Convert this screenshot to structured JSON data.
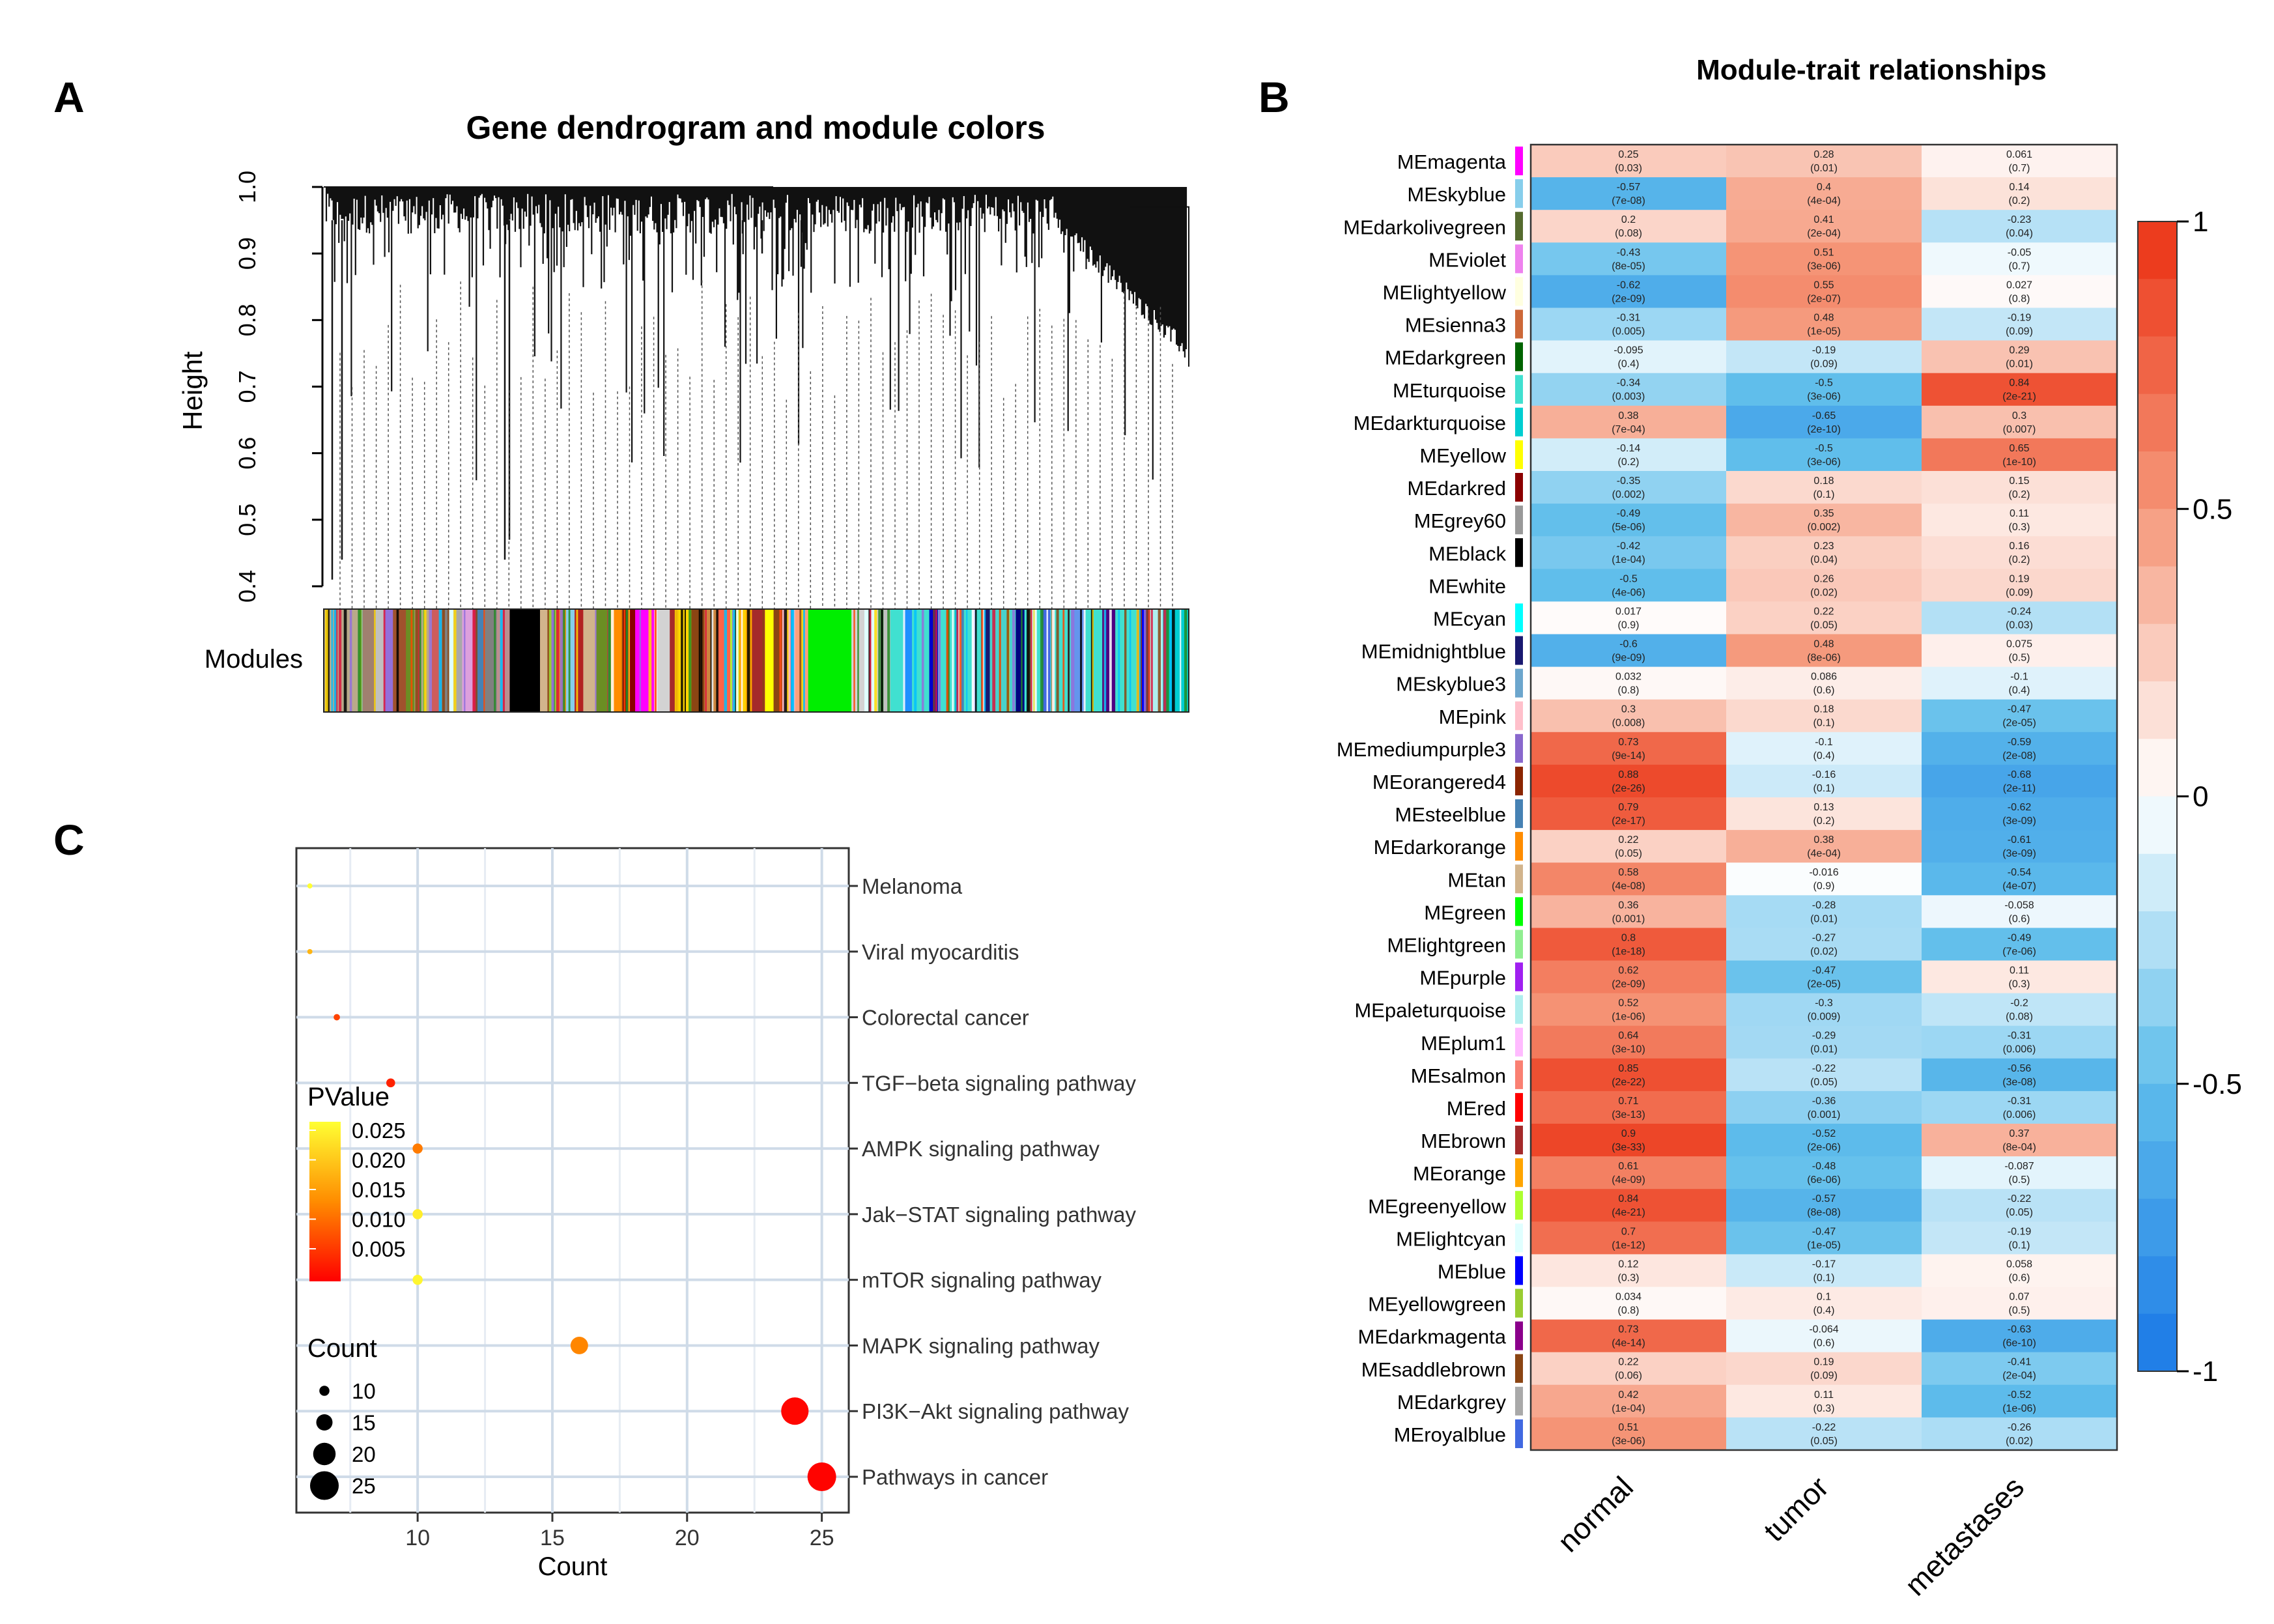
{
  "panels": {
    "a": "A",
    "b": "B",
    "c": "C"
  },
  "chart_data": [
    {
      "type": "dendrogram",
      "title": "Gene dendrogram and module colors",
      "ylabel": "Height",
      "ylim": [
        0.4,
        1.0
      ],
      "yticks": [
        "0.4",
        "0.5",
        "0.6",
        "0.7",
        "0.8",
        "0.9",
        "1.0"
      ],
      "color_bar_label": "Modules"
    },
    {
      "type": "heatmap",
      "title": "Module-trait relationships",
      "columns": [
        "normal",
        "tumor",
        "metastases"
      ],
      "colorbar": {
        "ticks": [
          "1",
          "0.5",
          "0",
          "-0.5",
          "-1"
        ],
        "range": [
          -1,
          1
        ]
      },
      "rows": [
        {
          "module": "MEmagenta",
          "swatch": "#ff00ff",
          "values": [
            0.25,
            0.28,
            0.061
          ],
          "pvals": [
            "(0.03)",
            "(0.01)",
            "(0.7)"
          ],
          "labels": [
            "0.25",
            "0.28",
            "0.061"
          ]
        },
        {
          "module": "MEskyblue",
          "swatch": "#87ceeb",
          "values": [
            -0.57,
            0.4,
            0.14
          ],
          "pvals": [
            "(7e-08)",
            "(4e-04)",
            "(0.2)"
          ],
          "labels": [
            "-0.57",
            "0.4",
            "0.14"
          ]
        },
        {
          "module": "MEdarkolivegreen",
          "swatch": "#556b2f",
          "values": [
            0.2,
            0.41,
            -0.23
          ],
          "pvals": [
            "(0.08)",
            "(2e-04)",
            "(0.04)"
          ],
          "labels": [
            "0.2",
            "0.41",
            "-0.23"
          ]
        },
        {
          "module": "MEviolet",
          "swatch": "#ee82ee",
          "values": [
            -0.43,
            0.51,
            -0.05
          ],
          "pvals": [
            "(8e-05)",
            "(3e-06)",
            "(0.7)"
          ],
          "labels": [
            "-0.43",
            "0.51",
            "-0.05"
          ]
        },
        {
          "module": "MElightyellow",
          "swatch": "#ffffe0",
          "values": [
            -0.62,
            0.55,
            0.027
          ],
          "pvals": [
            "(2e-09)",
            "(2e-07)",
            "(0.8)"
          ],
          "labels": [
            "-0.62",
            "0.55",
            "0.027"
          ]
        },
        {
          "module": "MEsienna3",
          "swatch": "#cd6839",
          "values": [
            -0.31,
            0.48,
            -0.19
          ],
          "pvals": [
            "(0.005)",
            "(1e-05)",
            "(0.09)"
          ],
          "labels": [
            "-0.31",
            "0.48",
            "-0.19"
          ]
        },
        {
          "module": "MEdarkgreen",
          "swatch": "#006400",
          "values": [
            -0.095,
            -0.19,
            0.29
          ],
          "pvals": [
            "(0.4)",
            "(0.09)",
            "(0.01)"
          ],
          "labels": [
            "-0.095",
            "-0.19",
            "0.29"
          ]
        },
        {
          "module": "MEturquoise",
          "swatch": "#40e0d0",
          "values": [
            -0.34,
            -0.5,
            0.84
          ],
          "pvals": [
            "(0.003)",
            "(3e-06)",
            "(2e-21)"
          ],
          "labels": [
            "-0.34",
            "-0.5",
            "0.84"
          ]
        },
        {
          "module": "MEdarkturquoise",
          "swatch": "#00ced1",
          "values": [
            0.38,
            -0.65,
            0.3
          ],
          "pvals": [
            "(7e-04)",
            "(2e-10)",
            "(0.007)"
          ],
          "labels": [
            "0.38",
            "-0.65",
            "0.3"
          ]
        },
        {
          "module": "MEyellow",
          "swatch": "#ffff00",
          "values": [
            -0.14,
            -0.5,
            0.65
          ],
          "pvals": [
            "(0.2)",
            "(3e-06)",
            "(1e-10)"
          ],
          "labels": [
            "-0.14",
            "-0.5",
            "0.65"
          ]
        },
        {
          "module": "MEdarkred",
          "swatch": "#8b0000",
          "values": [
            -0.35,
            0.18,
            0.15
          ],
          "pvals": [
            "(0.002)",
            "(0.1)",
            "(0.2)"
          ],
          "labels": [
            "-0.35",
            "0.18",
            "0.15"
          ]
        },
        {
          "module": "MEgrey60",
          "swatch": "#999999",
          "values": [
            -0.49,
            0.35,
            0.11
          ],
          "pvals": [
            "(5e-06)",
            "(0.002)",
            "(0.3)"
          ],
          "labels": [
            "-0.49",
            "0.35",
            "0.11"
          ]
        },
        {
          "module": "MEblack",
          "swatch": "#000000",
          "values": [
            -0.42,
            0.23,
            0.16
          ],
          "pvals": [
            "(1e-04)",
            "(0.04)",
            "(0.2)"
          ],
          "labels": [
            "-0.42",
            "0.23",
            "0.16"
          ]
        },
        {
          "module": "MEwhite",
          "swatch": "#ffffff",
          "values": [
            -0.5,
            0.26,
            0.19
          ],
          "pvals": [
            "(4e-06)",
            "(0.02)",
            "(0.09)"
          ],
          "labels": [
            "-0.5",
            "0.26",
            "0.19"
          ]
        },
        {
          "module": "MEcyan",
          "swatch": "#00ffff",
          "values": [
            0.017,
            0.22,
            -0.24
          ],
          "pvals": [
            "(0.9)",
            "(0.05)",
            "(0.03)"
          ],
          "labels": [
            "0.017",
            "0.22",
            "-0.24"
          ]
        },
        {
          "module": "MEmidnightblue",
          "swatch": "#191970",
          "values": [
            -0.6,
            0.48,
            0.075
          ],
          "pvals": [
            "(9e-09)",
            "(8e-06)",
            "(0.5)"
          ],
          "labels": [
            "-0.6",
            "0.48",
            "0.075"
          ]
        },
        {
          "module": "MEskyblue3",
          "swatch": "#6ca6cd",
          "values": [
            0.032,
            0.086,
            -0.1
          ],
          "pvals": [
            "(0.8)",
            "(0.6)",
            "(0.4)"
          ],
          "labels": [
            "0.032",
            "0.086",
            "-0.1"
          ]
        },
        {
          "module": "MEpink",
          "swatch": "#ffc0cb",
          "values": [
            0.3,
            0.18,
            -0.47
          ],
          "pvals": [
            "(0.008)",
            "(0.1)",
            "(2e-05)"
          ],
          "labels": [
            "0.3",
            "0.18",
            "-0.47"
          ]
        },
        {
          "module": "MEmediumpurple3",
          "swatch": "#8968cd",
          "values": [
            0.73,
            -0.1,
            -0.59
          ],
          "pvals": [
            "(9e-14)",
            "(0.4)",
            "(2e-08)"
          ],
          "labels": [
            "0.73",
            "-0.1",
            "-0.59"
          ]
        },
        {
          "module": "MEorangered4",
          "swatch": "#8b2500",
          "values": [
            0.88,
            -0.16,
            -0.68
          ],
          "pvals": [
            "(2e-26)",
            "(0.1)",
            "(2e-11)"
          ],
          "labels": [
            "0.88",
            "-0.16",
            "-0.68"
          ]
        },
        {
          "module": "MEsteelblue",
          "swatch": "#4682b4",
          "values": [
            0.79,
            0.13,
            -0.62
          ],
          "pvals": [
            "(2e-17)",
            "(0.2)",
            "(3e-09)"
          ],
          "labels": [
            "0.79",
            "0.13",
            "-0.62"
          ]
        },
        {
          "module": "MEdarkorange",
          "swatch": "#ff8c00",
          "values": [
            0.22,
            0.38,
            -0.61
          ],
          "pvals": [
            "(0.05)",
            "(4e-04)",
            "(3e-09)"
          ],
          "labels": [
            "0.22",
            "0.38",
            "-0.61"
          ]
        },
        {
          "module": "MEtan",
          "swatch": "#d2b48c",
          "values": [
            0.58,
            -0.016,
            -0.54
          ],
          "pvals": [
            "(4e-08)",
            "(0.9)",
            "(4e-07)"
          ],
          "labels": [
            "0.58",
            "-0.016",
            "-0.54"
          ]
        },
        {
          "module": "MEgreen",
          "swatch": "#00ff00",
          "values": [
            0.36,
            -0.28,
            -0.058
          ],
          "pvals": [
            "(0.001)",
            "(0.01)",
            "(0.6)"
          ],
          "labels": [
            "0.36",
            "-0.28",
            "-0.058"
          ]
        },
        {
          "module": "MElightgreen",
          "swatch": "#90ee90",
          "values": [
            0.8,
            -0.27,
            -0.49
          ],
          "pvals": [
            "(1e-18)",
            "(0.02)",
            "(7e-06)"
          ],
          "labels": [
            "0.8",
            "-0.27",
            "-0.49"
          ]
        },
        {
          "module": "MEpurple",
          "swatch": "#a020f0",
          "values": [
            0.62,
            -0.47,
            0.11
          ],
          "pvals": [
            "(2e-09)",
            "(2e-05)",
            "(0.3)"
          ],
          "labels": [
            "0.62",
            "-0.47",
            "0.11"
          ]
        },
        {
          "module": "MEpaleturquoise",
          "swatch": "#afeeee",
          "values": [
            0.52,
            -0.3,
            -0.2
          ],
          "pvals": [
            "(1e-06)",
            "(0.009)",
            "(0.08)"
          ],
          "labels": [
            "0.52",
            "-0.3",
            "-0.2"
          ]
        },
        {
          "module": "MEplum1",
          "swatch": "#ffbbff",
          "values": [
            0.64,
            -0.29,
            -0.31
          ],
          "pvals": [
            "(3e-10)",
            "(0.01)",
            "(0.006)"
          ],
          "labels": [
            "0.64",
            "-0.29",
            "-0.31"
          ]
        },
        {
          "module": "MEsalmon",
          "swatch": "#fa8072",
          "values": [
            0.85,
            -0.22,
            -0.56
          ],
          "pvals": [
            "(2e-22)",
            "(0.05)",
            "(3e-08)"
          ],
          "labels": [
            "0.85",
            "-0.22",
            "-0.56"
          ]
        },
        {
          "module": "MEred",
          "swatch": "#ff0000",
          "values": [
            0.71,
            -0.36,
            -0.31
          ],
          "pvals": [
            "(3e-13)",
            "(0.001)",
            "(0.006)"
          ],
          "labels": [
            "0.71",
            "-0.36",
            "-0.31"
          ]
        },
        {
          "module": "MEbrown",
          "swatch": "#a52a2a",
          "values": [
            0.9,
            -0.52,
            0.37
          ],
          "pvals": [
            "(3e-33)",
            "(2e-06)",
            "(8e-04)"
          ],
          "labels": [
            "0.9",
            "-0.52",
            "0.37"
          ]
        },
        {
          "module": "MEorange",
          "swatch": "#ffa500",
          "values": [
            0.61,
            -0.48,
            -0.087
          ],
          "pvals": [
            "(4e-09)",
            "(6e-06)",
            "(0.5)"
          ],
          "labels": [
            "0.61",
            "-0.48",
            "-0.087"
          ]
        },
        {
          "module": "MEgreenyellow",
          "swatch": "#adff2f",
          "values": [
            0.84,
            -0.57,
            -0.22
          ],
          "pvals": [
            "(4e-21)",
            "(8e-08)",
            "(0.05)"
          ],
          "labels": [
            "0.84",
            "-0.57",
            "-0.22"
          ]
        },
        {
          "module": "MElightcyan",
          "swatch": "#e0ffff",
          "values": [
            0.7,
            -0.47,
            -0.19
          ],
          "pvals": [
            "(1e-12)",
            "(1e-05)",
            "(0.1)"
          ],
          "labels": [
            "0.7",
            "-0.47",
            "-0.19"
          ]
        },
        {
          "module": "MEblue",
          "swatch": "#0000ff",
          "values": [
            0.12,
            -0.17,
            0.058
          ],
          "pvals": [
            "(0.3)",
            "(0.1)",
            "(0.6)"
          ],
          "labels": [
            "0.12",
            "-0.17",
            "0.058"
          ]
        },
        {
          "module": "MEyellowgreen",
          "swatch": "#9acd32",
          "values": [
            0.034,
            0.1,
            0.07
          ],
          "pvals": [
            "(0.8)",
            "(0.4)",
            "(0.5)"
          ],
          "labels": [
            "0.034",
            "0.1",
            "0.07"
          ]
        },
        {
          "module": "MEdarkmagenta",
          "swatch": "#8b008b",
          "values": [
            0.73,
            -0.064,
            -0.63
          ],
          "pvals": [
            "(4e-14)",
            "(0.6)",
            "(6e-10)"
          ],
          "labels": [
            "0.73",
            "-0.064",
            "-0.63"
          ]
        },
        {
          "module": "MEsaddlebrown",
          "swatch": "#8b4513",
          "values": [
            0.22,
            0.19,
            -0.41
          ],
          "pvals": [
            "(0.06)",
            "(0.09)",
            "(2e-04)"
          ],
          "labels": [
            "0.22",
            "0.19",
            "-0.41"
          ]
        },
        {
          "module": "MEdarkgrey",
          "swatch": "#a9a9a9",
          "values": [
            0.42,
            0.11,
            -0.52
          ],
          "pvals": [
            "(1e-04)",
            "(0.3)",
            "(1e-06)"
          ],
          "labels": [
            "0.42",
            "0.11",
            "-0.52"
          ]
        },
        {
          "module": "MEroyalblue",
          "swatch": "#4169e1",
          "values": [
            0.51,
            -0.22,
            -0.26
          ],
          "pvals": [
            "(3e-06)",
            "(0.05)",
            "(0.02)"
          ],
          "labels": [
            "0.51",
            "-0.22",
            "-0.26"
          ]
        }
      ]
    },
    {
      "type": "scatter",
      "subtype": "kegg-bubble",
      "xlabel": "Count",
      "xlim": [
        5.5,
        26
      ],
      "xticks": [
        10,
        15,
        20,
        25
      ],
      "categories": [
        "Melanoma",
        "Viral myocarditis",
        "Colorectal cancer",
        "TGF−beta signaling pathway",
        "AMPK signaling pathway",
        "Jak−STAT signaling pathway",
        "mTOR signaling pathway",
        "MAPK signaling pathway",
        "PI3K−Akt signaling pathway",
        "Pathways in cancer"
      ],
      "points": [
        {
          "pathway": "Melanoma",
          "count": 6,
          "pvalue": 0.025
        },
        {
          "pathway": "Viral myocarditis",
          "count": 6,
          "pvalue": 0.017
        },
        {
          "pathway": "Colorectal cancer",
          "count": 7,
          "pvalue": 0.006
        },
        {
          "pathway": "TGF−beta signaling pathway",
          "count": 9,
          "pvalue": 0.003
        },
        {
          "pathway": "AMPK signaling pathway",
          "count": 10,
          "pvalue": 0.011
        },
        {
          "pathway": "Jak−STAT signaling pathway",
          "count": 10,
          "pvalue": 0.023
        },
        {
          "pathway": "mTOR signaling pathway",
          "count": 10,
          "pvalue": 0.024
        },
        {
          "pathway": "MAPK signaling pathway",
          "count": 16,
          "pvalue": 0.012
        },
        {
          "pathway": "PI3K−Akt signaling pathway",
          "count": 24,
          "pvalue": 0.0005
        },
        {
          "pathway": "Pathways in cancer",
          "count": 25,
          "pvalue": 0.0003
        }
      ],
      "legend_pvalue": {
        "title": "PValue",
        "ticks": [
          "0.025",
          "0.020",
          "0.015",
          "0.010",
          "0.005"
        ]
      },
      "legend_count": {
        "title": "Count",
        "ticks": [
          "10",
          "15",
          "20",
          "25"
        ]
      }
    }
  ]
}
